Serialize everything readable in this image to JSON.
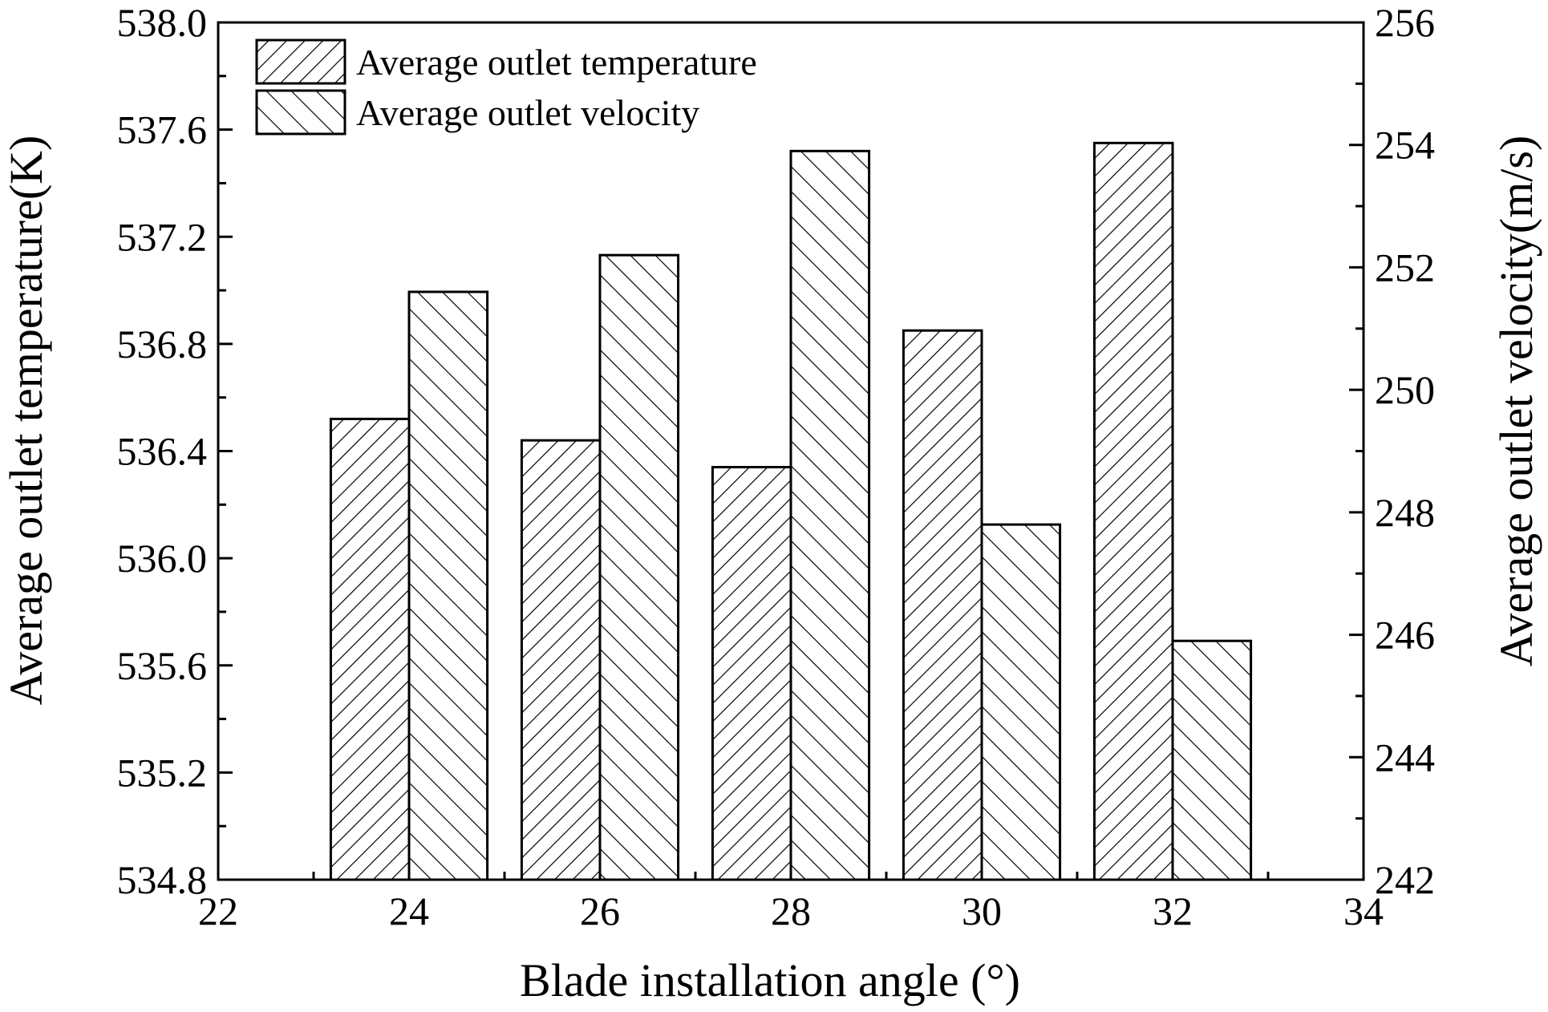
{
  "chart_data": {
    "type": "bar",
    "xlabel": "Blade installation angle (°)",
    "ylabel_left": "Average outlet temperature(K)",
    "ylabel_right": "Average outlet velocity(m/s)",
    "x_ticks": [
      "22",
      "24",
      "26",
      "28",
      "30",
      "32",
      "34"
    ],
    "xlim": [
      22,
      34
    ],
    "y_left_ticks": [
      "534.8",
      "535.2",
      "535.6",
      "536.0",
      "536.4",
      "536.8",
      "537.2",
      "537.6",
      "538.0"
    ],
    "y_left_lim": [
      534.8,
      538.0
    ],
    "y_right_ticks": [
      "242",
      "244",
      "246",
      "248",
      "250",
      "252",
      "254",
      "256"
    ],
    "y_right_lim": [
      242,
      256
    ],
    "categories": [
      24,
      26,
      28,
      30,
      32
    ],
    "series": [
      {
        "name": "Average outlet temperature",
        "axis": "left",
        "pattern": "hatch-forward",
        "values": [
          536.52,
          536.44,
          536.34,
          536.85,
          537.55
        ]
      },
      {
        "name": "Average outlet velocity",
        "axis": "right",
        "pattern": "hatch-back",
        "values": [
          251.6,
          252.2,
          253.9,
          247.8,
          245.9
        ]
      }
    ],
    "legend_position": "top-left",
    "grid": false
  }
}
